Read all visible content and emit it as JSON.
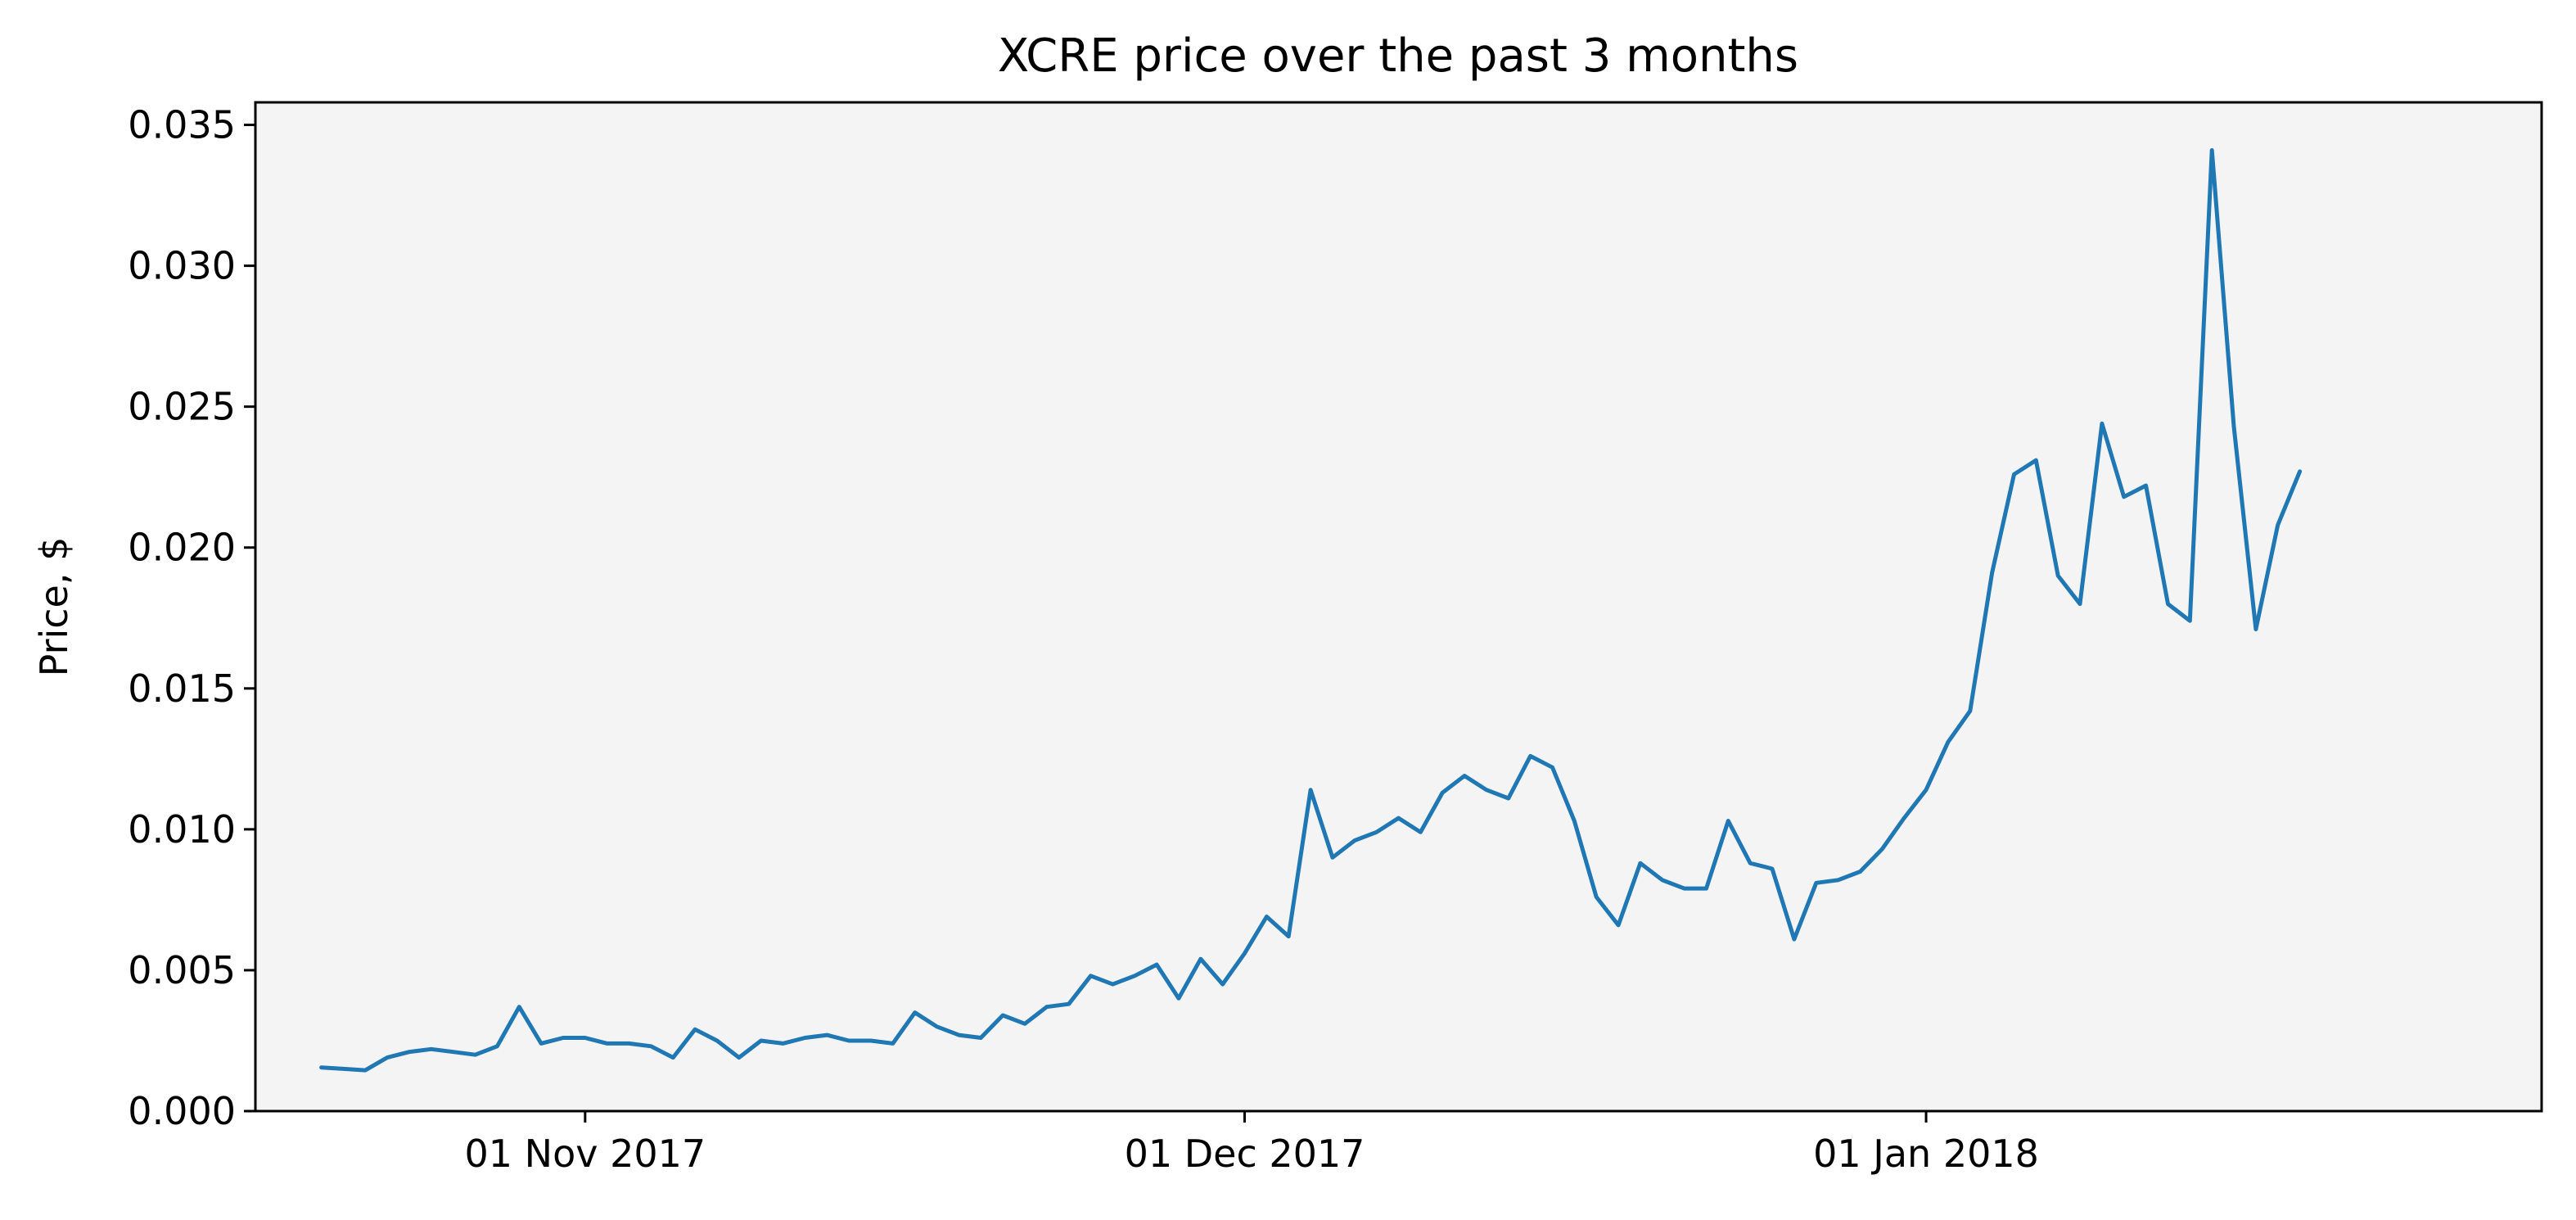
{
  "chart_data": {
    "type": "line",
    "title": "XCRE price over the past 3 months",
    "xlabel": "",
    "ylabel": "Price, $",
    "x_start": "2017-10-20",
    "x_step_days": 1,
    "xlim": [
      "2017-10-17",
      "2018-01-29"
    ],
    "ylim": [
      0.0,
      0.0358
    ],
    "x_ticks": [
      {
        "date": "2017-11-01",
        "label": "01 Nov 2017"
      },
      {
        "date": "2017-12-01",
        "label": "01 Dec 2017"
      },
      {
        "date": "2018-01-01",
        "label": "01 Jan 2018"
      }
    ],
    "y_ticks": [
      {
        "value": 0.0,
        "label": "0.000"
      },
      {
        "value": 0.005,
        "label": "0.005"
      },
      {
        "value": 0.01,
        "label": "0.010"
      },
      {
        "value": 0.015,
        "label": "0.015"
      },
      {
        "value": 0.02,
        "label": "0.020"
      },
      {
        "value": 0.025,
        "label": "0.025"
      },
      {
        "value": 0.03,
        "label": "0.030"
      },
      {
        "value": 0.035,
        "label": "0.035"
      }
    ],
    "grid": false,
    "plot_background": "#f4f4f4",
    "series": [
      {
        "color": "#1f77b4",
        "values": [
          0.00155,
          0.0015,
          0.00145,
          0.0019,
          0.0021,
          0.0022,
          0.0021,
          0.002,
          0.0023,
          0.0037,
          0.0024,
          0.0026,
          0.0026,
          0.0024,
          0.0024,
          0.0023,
          0.0019,
          0.0029,
          0.0025,
          0.0019,
          0.0025,
          0.0024,
          0.0026,
          0.0027,
          0.0025,
          0.0025,
          0.0024,
          0.0035,
          0.003,
          0.0027,
          0.0026,
          0.0034,
          0.0031,
          0.0037,
          0.0038,
          0.0048,
          0.0045,
          0.0048,
          0.0052,
          0.004,
          0.0054,
          0.0045,
          0.0056,
          0.0069,
          0.0062,
          0.0114,
          0.009,
          0.0096,
          0.0099,
          0.0104,
          0.0099,
          0.0113,
          0.0119,
          0.0114,
          0.0111,
          0.0126,
          0.0122,
          0.0103,
          0.0076,
          0.0066,
          0.0088,
          0.0082,
          0.0079,
          0.0079,
          0.0103,
          0.0088,
          0.0086,
          0.0061,
          0.0081,
          0.0082,
          0.0085,
          0.0093,
          0.0104,
          0.0114,
          0.0131,
          0.0142,
          0.0191,
          0.0226,
          0.0231,
          0.019,
          0.018,
          0.0244,
          0.0218,
          0.0222,
          0.018,
          0.0174,
          0.0341,
          0.0243,
          0.0171,
          0.0208,
          0.0227
        ]
      }
    ]
  }
}
